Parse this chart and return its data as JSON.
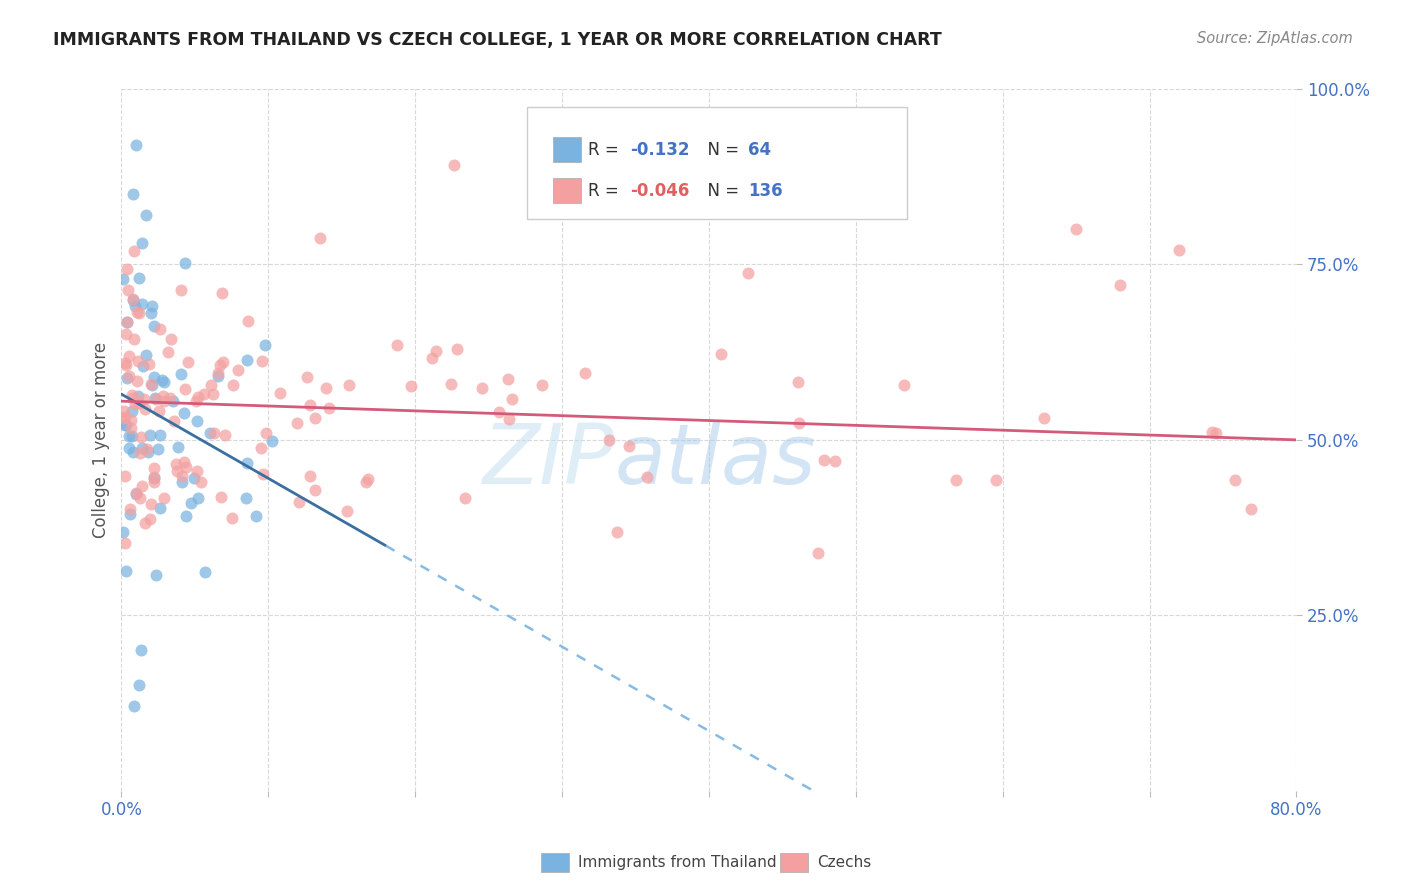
{
  "title": "IMMIGRANTS FROM THAILAND VS CZECH COLLEGE, 1 YEAR OR MORE CORRELATION CHART",
  "source": "Source: ZipAtlas.com",
  "ylabel": "College, 1 year or more",
  "r_thailand": -0.132,
  "n_thailand": 64,
  "r_czech": -0.046,
  "n_czech": 136,
  "xlim": [
    0.0,
    0.8
  ],
  "ylim": [
    0.0,
    1.0
  ],
  "color_thailand": "#7ab3e0",
  "color_czech": "#f4a0a0",
  "line_color_thailand_solid": "#3b6fa0",
  "line_color_thailand_dashed": "#7ab3e0",
  "line_color_czech": "#d45a7a",
  "watermark": "ZIPatlas",
  "watermark_color_zip": "#c8dff0",
  "watermark_color_atlas": "#a0c8e8",
  "legend_r_color_thailand": "#4472c4",
  "legend_r_color_czech": "#e06060",
  "legend_n_color": "#4472c4",
  "tick_color": "#4472c4",
  "background_color": "#ffffff",
  "grid_color": "#d8d8d8"
}
